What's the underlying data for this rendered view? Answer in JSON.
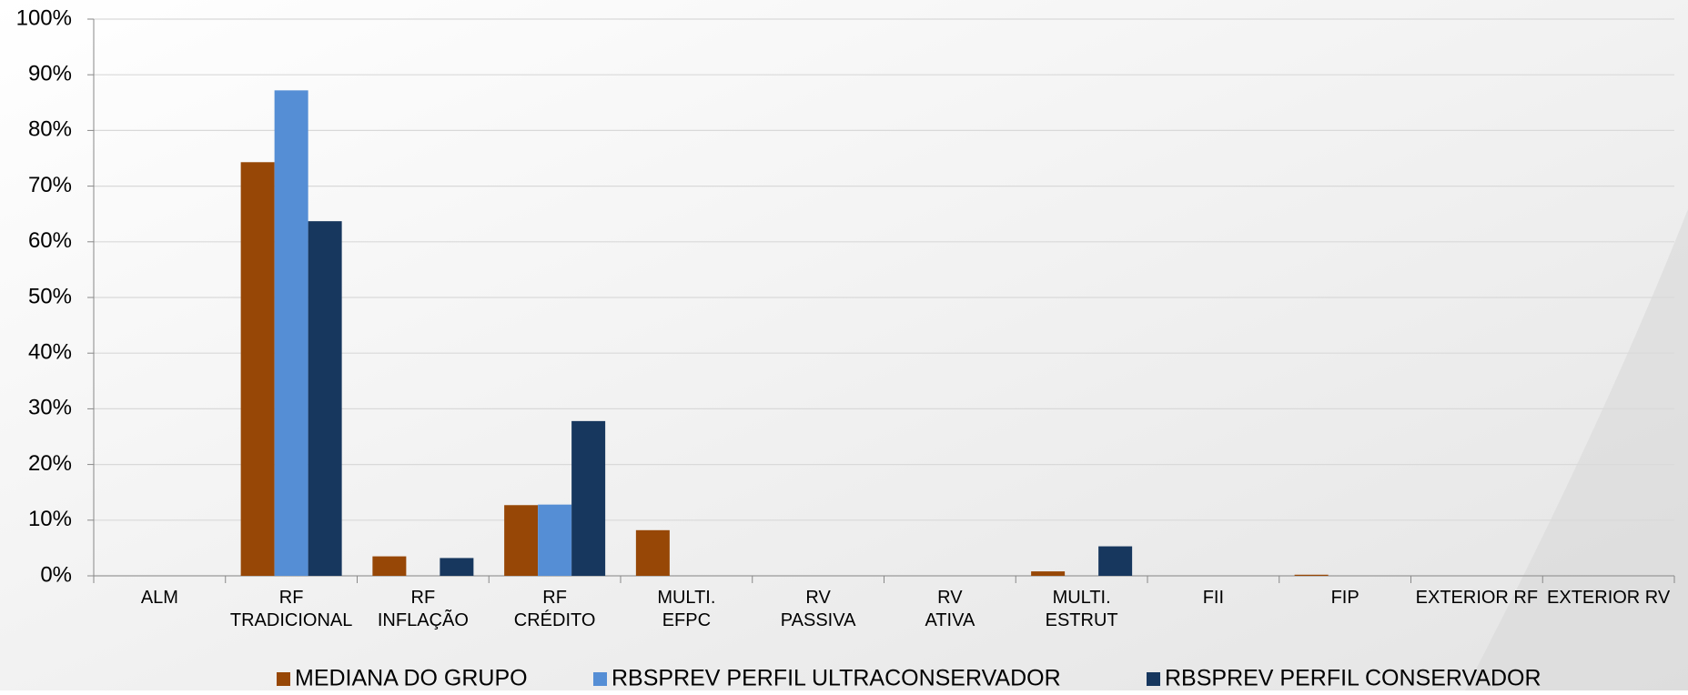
{
  "chart_data": {
    "type": "bar",
    "categories": [
      "ALM",
      "RF\nTRADICIONAL",
      "RF\nINFLAÇÃO",
      "RF\nCRÉDITO",
      "MULTI.\nEFPC",
      "RV\nPASSIVA",
      "RV\nATIVA",
      "MULTI.\nESTRUT",
      "FII",
      "FIP",
      "EXTERIOR RF",
      "EXTERIOR RV"
    ],
    "series": [
      {
        "name": "MEDIANA DO GRUPO",
        "color": "#974706",
        "values": [
          0,
          74.3,
          3.5,
          12.7,
          8.2,
          0,
          0,
          0.8,
          0,
          0.2,
          0,
          0
        ]
      },
      {
        "name": "RBSPREV PERFIL ULTRACONSERVADOR",
        "color": "#558ed5",
        "values": [
          0,
          87.2,
          0,
          12.8,
          0,
          0,
          0,
          0,
          0,
          0,
          0,
          0
        ]
      },
      {
        "name": "RBSPREV PERFIL CONSERVADOR",
        "color": "#17375e",
        "values": [
          0,
          63.7,
          3.2,
          27.8,
          0,
          0,
          0,
          5.3,
          0,
          0,
          0,
          0
        ]
      }
    ],
    "ylim": [
      0,
      100
    ],
    "yticks": [
      {
        "value": 0,
        "label": "0%"
      },
      {
        "value": 10,
        "label": "10%"
      },
      {
        "value": 20,
        "label": "20%"
      },
      {
        "value": 30,
        "label": "30%"
      },
      {
        "value": 40,
        "label": "40%"
      },
      {
        "value": 50,
        "label": "50%"
      },
      {
        "value": 60,
        "label": "60%"
      },
      {
        "value": 70,
        "label": "70%"
      },
      {
        "value": 80,
        "label": "80%"
      },
      {
        "value": 90,
        "label": "90%"
      },
      {
        "value": 100,
        "label": "100%"
      }
    ],
    "grid": true,
    "legend": "bottom"
  }
}
